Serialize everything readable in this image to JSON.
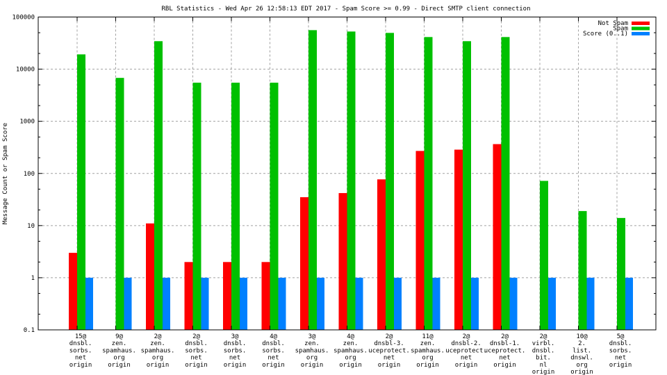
{
  "chart_data": {
    "type": "bar",
    "title": "RBL Statistics - Wed Apr 26 12:58:13 EDT 2017 - Spam Score >= 0.99 - Direct SMTP client connection",
    "xlabel": "",
    "ylabel": "Message Count or Spam Score",
    "yscale": "log",
    "ylim": [
      0.1,
      100000
    ],
    "yticks": [
      "0.1",
      "1",
      "10",
      "100",
      "1000",
      "10000",
      "100000"
    ],
    "ytick_values": [
      0.1,
      1,
      10,
      100,
      1000,
      10000,
      100000
    ],
    "grid": true,
    "legend_position": "top-right",
    "categories": [
      [
        "15@",
        "dnsbl.",
        "sorbs.",
        "net",
        "origin"
      ],
      [
        "9@",
        "zen.",
        "spamhaus.",
        "org",
        "origin"
      ],
      [
        "2@",
        "zen.",
        "spamhaus.",
        "org",
        "origin"
      ],
      [
        "2@",
        "dnsbl.",
        "sorbs.",
        "net",
        "origin"
      ],
      [
        "3@",
        "dnsbl.",
        "sorbs.",
        "net",
        "origin"
      ],
      [
        "4@",
        "dnsbl.",
        "sorbs.",
        "net",
        "origin"
      ],
      [
        "3@",
        "zen.",
        "spamhaus.",
        "org",
        "origin"
      ],
      [
        "4@",
        "zen.",
        "spamhaus.",
        "org",
        "origin"
      ],
      [
        "2@",
        "dnsbl-3.",
        "uceprotect.",
        "net",
        "origin"
      ],
      [
        "11@",
        "zen.",
        "spamhaus.",
        "org",
        "origin"
      ],
      [
        "2@",
        "dnsbl-2.",
        "uceprotect.",
        "net",
        "origin"
      ],
      [
        "2@",
        "dnsbl-1.",
        "uceprotect.",
        "net",
        "origin"
      ],
      [
        "2@",
        "virbl.",
        "dnsbl.",
        "bit.",
        "nl",
        "origin"
      ],
      [
        "10@",
        "2.",
        "list.",
        "dnswl.",
        "org",
        "origin"
      ],
      [
        "5@",
        "dnsbl.",
        "sorbs.",
        "net",
        "origin"
      ]
    ],
    "series": [
      {
        "name": "Not Spam",
        "color": "#ff0000",
        "values": [
          3,
          0,
          11,
          2,
          2,
          2,
          35,
          42,
          77,
          270,
          286,
          365,
          0,
          0,
          0
        ]
      },
      {
        "name": "Spam",
        "color": "#00c000",
        "values": [
          19200,
          6800,
          34400,
          5500,
          5500,
          5500,
          56000,
          52700,
          49600,
          41300,
          34400,
          41300,
          72,
          19,
          14
        ]
      },
      {
        "name": "Score (0..1)",
        "color": "#0080ff",
        "values": [
          1,
          1,
          1,
          1,
          1,
          1,
          1,
          1,
          1,
          1,
          1,
          1,
          1,
          1,
          1
        ]
      }
    ]
  }
}
